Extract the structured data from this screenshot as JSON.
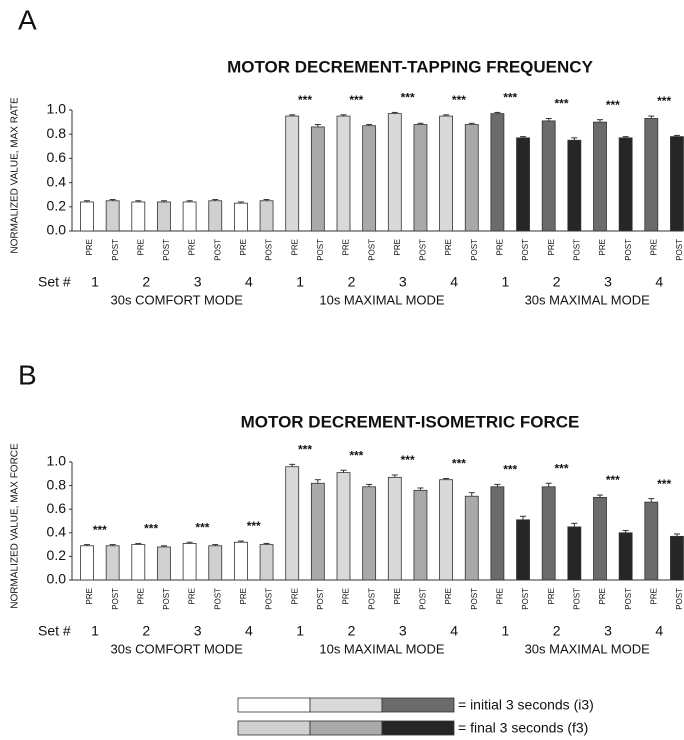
{
  "chart_data": [
    {
      "type": "bar",
      "panel_label": "A",
      "title": "MOTOR DECREMENT-TAPPING FREQUENCY",
      "y_label": "NORMALIZED VALUE, MAX RATE",
      "ylim": [
        0,
        1.0
      ],
      "yticks": [
        {
          "value": 0,
          "label": "0.0"
        },
        {
          "value": 0.2,
          "label": "0.2"
        },
        {
          "value": 0.4,
          "label": "0.4"
        },
        {
          "value": 0.6,
          "label": "0.6"
        },
        {
          "value": 0.8,
          "label": "0.8"
        },
        {
          "value": 1.0,
          "label": "1.0"
        }
      ],
      "categories": [
        "PRE",
        "POST",
        "PRE",
        "POST",
        "PRE",
        "POST",
        "PRE",
        "POST",
        "PRE",
        "POST",
        "PRE",
        "POST",
        "PRE",
        "POST",
        "PRE",
        "POST",
        "PRE",
        "POST",
        "PRE",
        "POST",
        "PRE",
        "POST",
        "PRE",
        "POST"
      ],
      "values": [
        0.24,
        0.25,
        0.24,
        0.24,
        0.24,
        0.25,
        0.23,
        0.25,
        0.95,
        0.86,
        0.95,
        0.87,
        0.97,
        0.88,
        0.95,
        0.88,
        0.97,
        0.77,
        0.91,
        0.75,
        0.9,
        0.77,
        0.93,
        0.78
      ],
      "errors": [
        0.01,
        0.01,
        0.01,
        0.01,
        0.01,
        0.01,
        0.01,
        0.01,
        0.01,
        0.02,
        0.01,
        0.01,
        0.01,
        0.01,
        0.01,
        0.01,
        0.01,
        0.01,
        0.02,
        0.02,
        0.02,
        0.01,
        0.02,
        0.01
      ],
      "colors": [
        "#ffffff",
        "#d0d0d0",
        "#ffffff",
        "#d0d0d0",
        "#ffffff",
        "#d0d0d0",
        "#ffffff",
        "#d0d0d0",
        "#d9d9d9",
        "#a9a9a9",
        "#d9d9d9",
        "#a9a9a9",
        "#d9d9d9",
        "#a9a9a9",
        "#d9d9d9",
        "#a9a9a9",
        "#6b6b6b",
        "#262626",
        "#6b6b6b",
        "#262626",
        "#6b6b6b",
        "#262626",
        "#6b6b6b",
        "#262626"
      ],
      "significance": [
        null,
        null,
        null,
        null,
        "***",
        "***",
        "***",
        "***",
        "***",
        "***",
        "***",
        "***"
      ],
      "set_label": "Set #",
      "groups": [
        {
          "name": "30s COMFORT MODE",
          "sets": [
            "1",
            "2",
            "3",
            "4"
          ]
        },
        {
          "name": "10s MAXIMAL MODE",
          "sets": [
            "1",
            "2",
            "3",
            "4"
          ]
        },
        {
          "name": "30s MAXIMAL MODE",
          "sets": [
            "1",
            "2",
            "3",
            "4"
          ]
        }
      ]
    },
    {
      "type": "bar",
      "panel_label": "B",
      "title": "MOTOR DECREMENT-ISOMETRIC FORCE",
      "y_label": "NORMALIZED VALUE, MAX FORCE",
      "ylim": [
        0,
        1.0
      ],
      "yticks": [
        {
          "value": 0,
          "label": "0.0"
        },
        {
          "value": 0.2,
          "label": "0.2"
        },
        {
          "value": 0.4,
          "label": "0.4"
        },
        {
          "value": 0.6,
          "label": "0.6"
        },
        {
          "value": 0.8,
          "label": "0.8"
        },
        {
          "value": 1.0,
          "label": "1.0"
        }
      ],
      "categories": [
        "PRE",
        "POST",
        "PRE",
        "POST",
        "PRE",
        "POST",
        "PRE",
        "POST",
        "PRE",
        "POST",
        "PRE",
        "POST",
        "PRE",
        "POST",
        "PRE",
        "POST",
        "PRE",
        "POST",
        "PRE",
        "POST",
        "PRE",
        "POST",
        "PRE",
        "POST"
      ],
      "values": [
        0.29,
        0.29,
        0.3,
        0.28,
        0.31,
        0.29,
        0.32,
        0.3,
        0.96,
        0.82,
        0.91,
        0.79,
        0.87,
        0.76,
        0.85,
        0.71,
        0.79,
        0.51,
        0.79,
        0.45,
        0.7,
        0.4,
        0.66,
        0.37
      ],
      "errors": [
        0.01,
        0.01,
        0.01,
        0.01,
        0.01,
        0.01,
        0.01,
        0.01,
        0.02,
        0.03,
        0.02,
        0.02,
        0.02,
        0.02,
        0.01,
        0.03,
        0.02,
        0.03,
        0.03,
        0.03,
        0.02,
        0.02,
        0.03,
        0.02
      ],
      "colors": [
        "#ffffff",
        "#d0d0d0",
        "#ffffff",
        "#d0d0d0",
        "#ffffff",
        "#d0d0d0",
        "#ffffff",
        "#d0d0d0",
        "#d9d9d9",
        "#a9a9a9",
        "#d9d9d9",
        "#a9a9a9",
        "#d9d9d9",
        "#a9a9a9",
        "#d9d9d9",
        "#a9a9a9",
        "#6b6b6b",
        "#262626",
        "#6b6b6b",
        "#262626",
        "#6b6b6b",
        "#262626",
        "#6b6b6b",
        "#262626"
      ],
      "significance": [
        "***",
        "***",
        "***",
        "***",
        "***",
        "***",
        "***",
        "***",
        "***",
        "***",
        "***",
        "***"
      ],
      "set_label": "Set #",
      "groups": [
        {
          "name": "30s COMFORT MODE",
          "sets": [
            "1",
            "2",
            "3",
            "4"
          ]
        },
        {
          "name": "10s MAXIMAL MODE",
          "sets": [
            "1",
            "2",
            "3",
            "4"
          ]
        },
        {
          "name": "30s MAXIMAL MODE",
          "sets": [
            "1",
            "2",
            "3",
            "4"
          ]
        }
      ]
    }
  ],
  "legend": [
    {
      "label": "= initial 3 seconds (i3)",
      "colors": [
        "#ffffff",
        "#d9d9d9",
        "#6b6b6b"
      ]
    },
    {
      "label": "= final 3 seconds (f3)",
      "colors": [
        "#d0d0d0",
        "#a9a9a9",
        "#262626"
      ]
    }
  ]
}
